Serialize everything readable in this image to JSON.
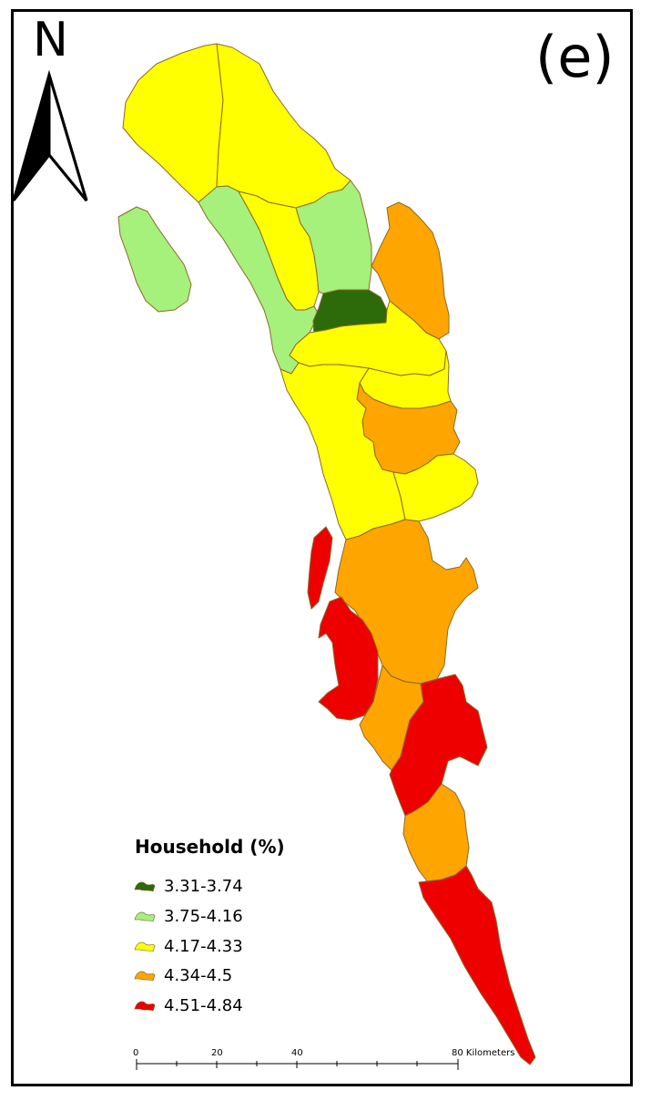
{
  "panel_label": "(e)",
  "north_arrow": {
    "letter": "N",
    "icon": "north-arrow-icon"
  },
  "legend": {
    "title": "Household (%)",
    "items": [
      {
        "label": "3.31-3.74",
        "color": "#2d6a0a"
      },
      {
        "label": "3.75-4.16",
        "color": "#a6f07c"
      },
      {
        "label": "4.17-4.33",
        "color": "#ffff00"
      },
      {
        "label": "4.34-4.5",
        "color": "#ffa500"
      },
      {
        "label": "4.51-4.84",
        "color": "#ee0000"
      }
    ]
  },
  "scale_bar": {
    "ticks": [
      "0",
      "20",
      "40",
      "80 Kilometers"
    ]
  },
  "map": {
    "boundary_color": "#8a6a2a"
  }
}
